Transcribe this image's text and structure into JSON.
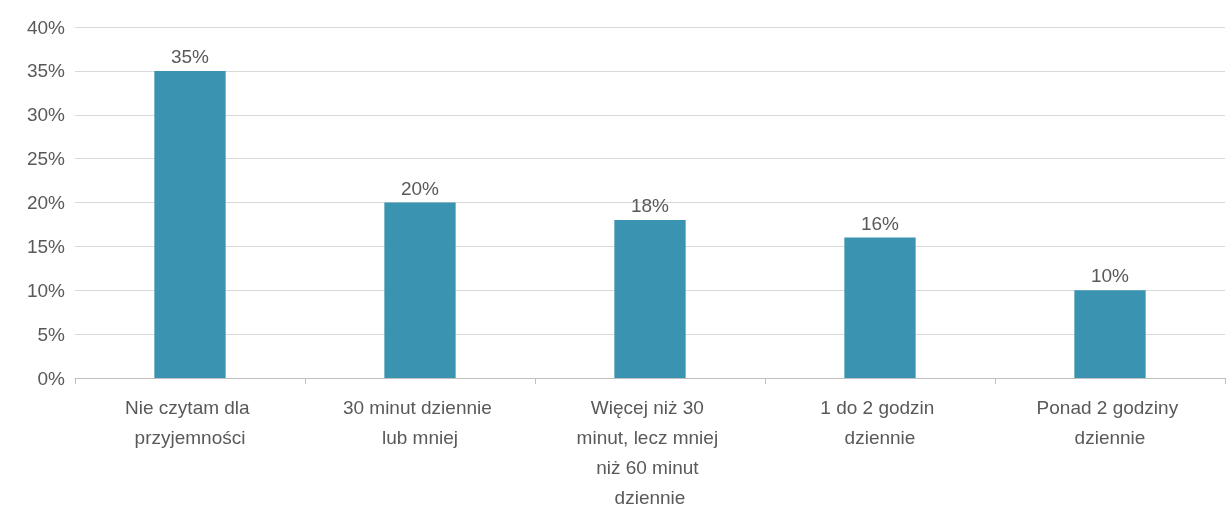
{
  "chart_data": {
    "type": "bar",
    "categories": [
      "Nie czytam dla przyjemności",
      "30 minut dziennie lub mniej",
      "Więcej niż 30 minut, lecz mniej niż 60 minut dziennie",
      "1 do 2 godzin dziennie",
      "Ponad 2 godziny dziennie"
    ],
    "values": [
      35,
      20,
      18,
      16,
      10
    ],
    "value_labels": [
      "35%",
      "20%",
      "18%",
      "16%",
      "10%"
    ],
    "color": "#3a93b0",
    "ylim": [
      0,
      40
    ],
    "yticks": [
      {
        "value": 0,
        "label": "0%"
      },
      {
        "value": 5,
        "label": "5%"
      },
      {
        "value": 10,
        "label": "10%"
      },
      {
        "value": 15,
        "label": "15%"
      },
      {
        "value": 20,
        "label": "20%"
      },
      {
        "value": 25,
        "label": "25%"
      },
      {
        "value": 30,
        "label": "30%"
      },
      {
        "value": 35,
        "label": "35%"
      },
      {
        "value": 40,
        "label": "40%"
      }
    ],
    "grid": "y"
  }
}
